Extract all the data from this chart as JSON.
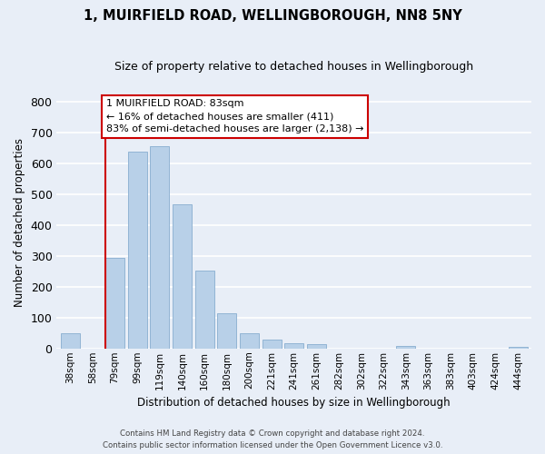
{
  "title": "1, MUIRFIELD ROAD, WELLINGBOROUGH, NN8 5NY",
  "subtitle": "Size of property relative to detached houses in Wellingborough",
  "xlabel": "Distribution of detached houses by size in Wellingborough",
  "ylabel": "Number of detached properties",
  "bar_labels": [
    "38sqm",
    "58sqm",
    "79sqm",
    "99sqm",
    "119sqm",
    "140sqm",
    "160sqm",
    "180sqm",
    "200sqm",
    "221sqm",
    "241sqm",
    "261sqm",
    "282sqm",
    "302sqm",
    "322sqm",
    "343sqm",
    "363sqm",
    "383sqm",
    "403sqm",
    "424sqm",
    "444sqm"
  ],
  "bar_values": [
    48,
    0,
    293,
    638,
    657,
    468,
    253,
    113,
    49,
    29,
    17,
    13,
    0,
    0,
    0,
    7,
    0,
    0,
    0,
    0,
    6
  ],
  "bar_color": "#b8d0e8",
  "bar_edge_color": "#92b4d4",
  "vline_x_index": 2,
  "annotation_line1": "1 MUIRFIELD ROAD: 83sqm",
  "annotation_line2": "← 16% of detached houses are smaller (411)",
  "annotation_line3": "83% of semi-detached houses are larger (2,138) →",
  "annotation_box_color": "#ffffff",
  "annotation_box_edge": "#cc0000",
  "vline_color": "#cc0000",
  "footer_line1": "Contains HM Land Registry data © Crown copyright and database right 2024.",
  "footer_line2": "Contains public sector information licensed under the Open Government Licence v3.0.",
  "ylim": [
    0,
    820
  ],
  "yticks": [
    0,
    100,
    200,
    300,
    400,
    500,
    600,
    700,
    800
  ],
  "background_color": "#e8eef7",
  "plot_background": "#e8eef7",
  "grid_color": "#ffffff"
}
